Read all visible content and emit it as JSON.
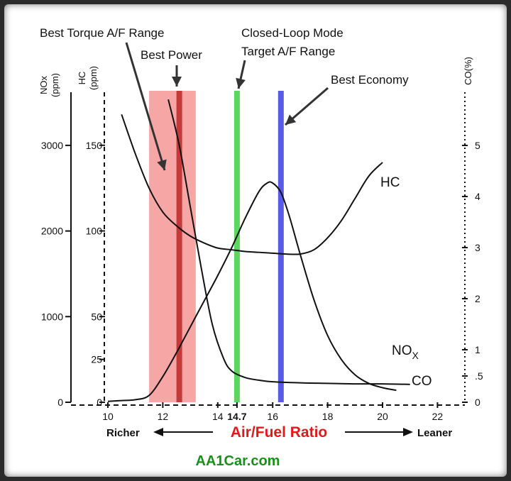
{
  "chart_data": {
    "type": "line",
    "xlabel": "Air/Fuel Ratio",
    "x_left_label": "Richer",
    "x_right_label": "Leaner",
    "xlim": [
      10,
      23
    ],
    "x_ticks": [
      {
        "v": 10,
        "label": "10"
      },
      {
        "v": 12,
        "label": "12"
      },
      {
        "v": 14,
        "label": "14"
      },
      {
        "v": 14.7,
        "label": "14.7"
      },
      {
        "v": 16,
        "label": "16"
      },
      {
        "v": 18,
        "label": "18"
      },
      {
        "v": 20,
        "label": "20"
      },
      {
        "v": 22,
        "label": "22"
      }
    ],
    "axes": {
      "nox": {
        "label": "NOx",
        "unit": "(ppm)",
        "ticks": [
          {
            "v": 0,
            "label": "0"
          },
          {
            "v": 1000,
            "label": "1000"
          },
          {
            "v": 2000,
            "label": "2000"
          },
          {
            "v": 3000,
            "label": "3000"
          }
        ]
      },
      "hc": {
        "label": "HC",
        "unit": "(ppm)",
        "ticks": [
          {
            "v": 0,
            "label": "0"
          },
          {
            "v": 25,
            "label": "25"
          },
          {
            "v": 50,
            "label": "50"
          },
          {
            "v": 100,
            "label": "100"
          },
          {
            "v": 150,
            "label": "150"
          }
        ]
      },
      "co": {
        "label": "CO(%)",
        "ticks": [
          {
            "v": 0,
            "label": "0"
          },
          {
            "v": 0.5,
            "label": ".5"
          },
          {
            "v": 1,
            "label": "1"
          },
          {
            "v": 2,
            "label": "2"
          },
          {
            "v": 3,
            "label": "3"
          },
          {
            "v": 4,
            "label": "4"
          },
          {
            "v": 5,
            "label": "5"
          }
        ]
      }
    },
    "series": [
      {
        "name": "HC",
        "label": "HC",
        "axis": "hc",
        "color": "#111111",
        "x": [
          10.5,
          11,
          11.5,
          12,
          12.5,
          13,
          13.5,
          14,
          14.5,
          15,
          15.5,
          16,
          16.5,
          17,
          17.5,
          18,
          18.5,
          19,
          19.5,
          20
        ],
        "y": [
          168,
          145,
          125,
          111,
          103,
          97,
          93,
          90,
          89,
          88,
          87.5,
          87,
          86.5,
          86.5,
          89,
          96,
          106,
          119,
          132,
          140
        ]
      },
      {
        "name": "NOx",
        "label": "NOX",
        "axis": "nox",
        "color": "#111111",
        "x": [
          10,
          10.5,
          11,
          11.5,
          12,
          12.5,
          13,
          13.5,
          14,
          14.5,
          15,
          15.5,
          15.8,
          16,
          16.3,
          16.6,
          17,
          17.5,
          18,
          18.5,
          19,
          19.5,
          20,
          20.5
        ],
        "y": [
          10,
          20,
          30,
          80,
          300,
          580,
          880,
          1180,
          1480,
          1800,
          2150,
          2460,
          2560,
          2560,
          2450,
          2180,
          1730,
          1200,
          780,
          500,
          320,
          220,
          170,
          140
        ]
      },
      {
        "name": "CO",
        "label": "CO",
        "axis": "co",
        "color": "#111111",
        "x": [
          12.2,
          12.6,
          13,
          13.4,
          13.8,
          14.2,
          14.5,
          15,
          15.5,
          16,
          17,
          18,
          19,
          20,
          21
        ],
        "y": [
          5.9,
          5,
          3.8,
          2.6,
          1.5,
          0.85,
          0.6,
          0.47,
          0.42,
          0.39,
          0.37,
          0.36,
          0.35,
          0.35,
          0.34
        ]
      }
    ],
    "bands": [
      {
        "name": "Best Torque A/F Range",
        "x0": 11.5,
        "x1": 13.2,
        "color": "#f7a6a6"
      },
      {
        "name": "Best Power",
        "x": 12.6,
        "color": "#c43a3a"
      },
      {
        "name": "Closed-Loop Mode Target A/F Range",
        "x": 14.7,
        "color": "#5bd85b"
      },
      {
        "name": "Best Economy",
        "x": 16.3,
        "color": "#5a5ae8"
      }
    ],
    "annotations": {
      "torque": "Best Torque A/F Range",
      "power": "Best Power",
      "closed_loop_1": "Closed-Loop Mode",
      "closed_loop_2": "Target A/F Range",
      "economy": "Best Economy"
    }
  },
  "branding": {
    "site": "AA1Car.com"
  }
}
